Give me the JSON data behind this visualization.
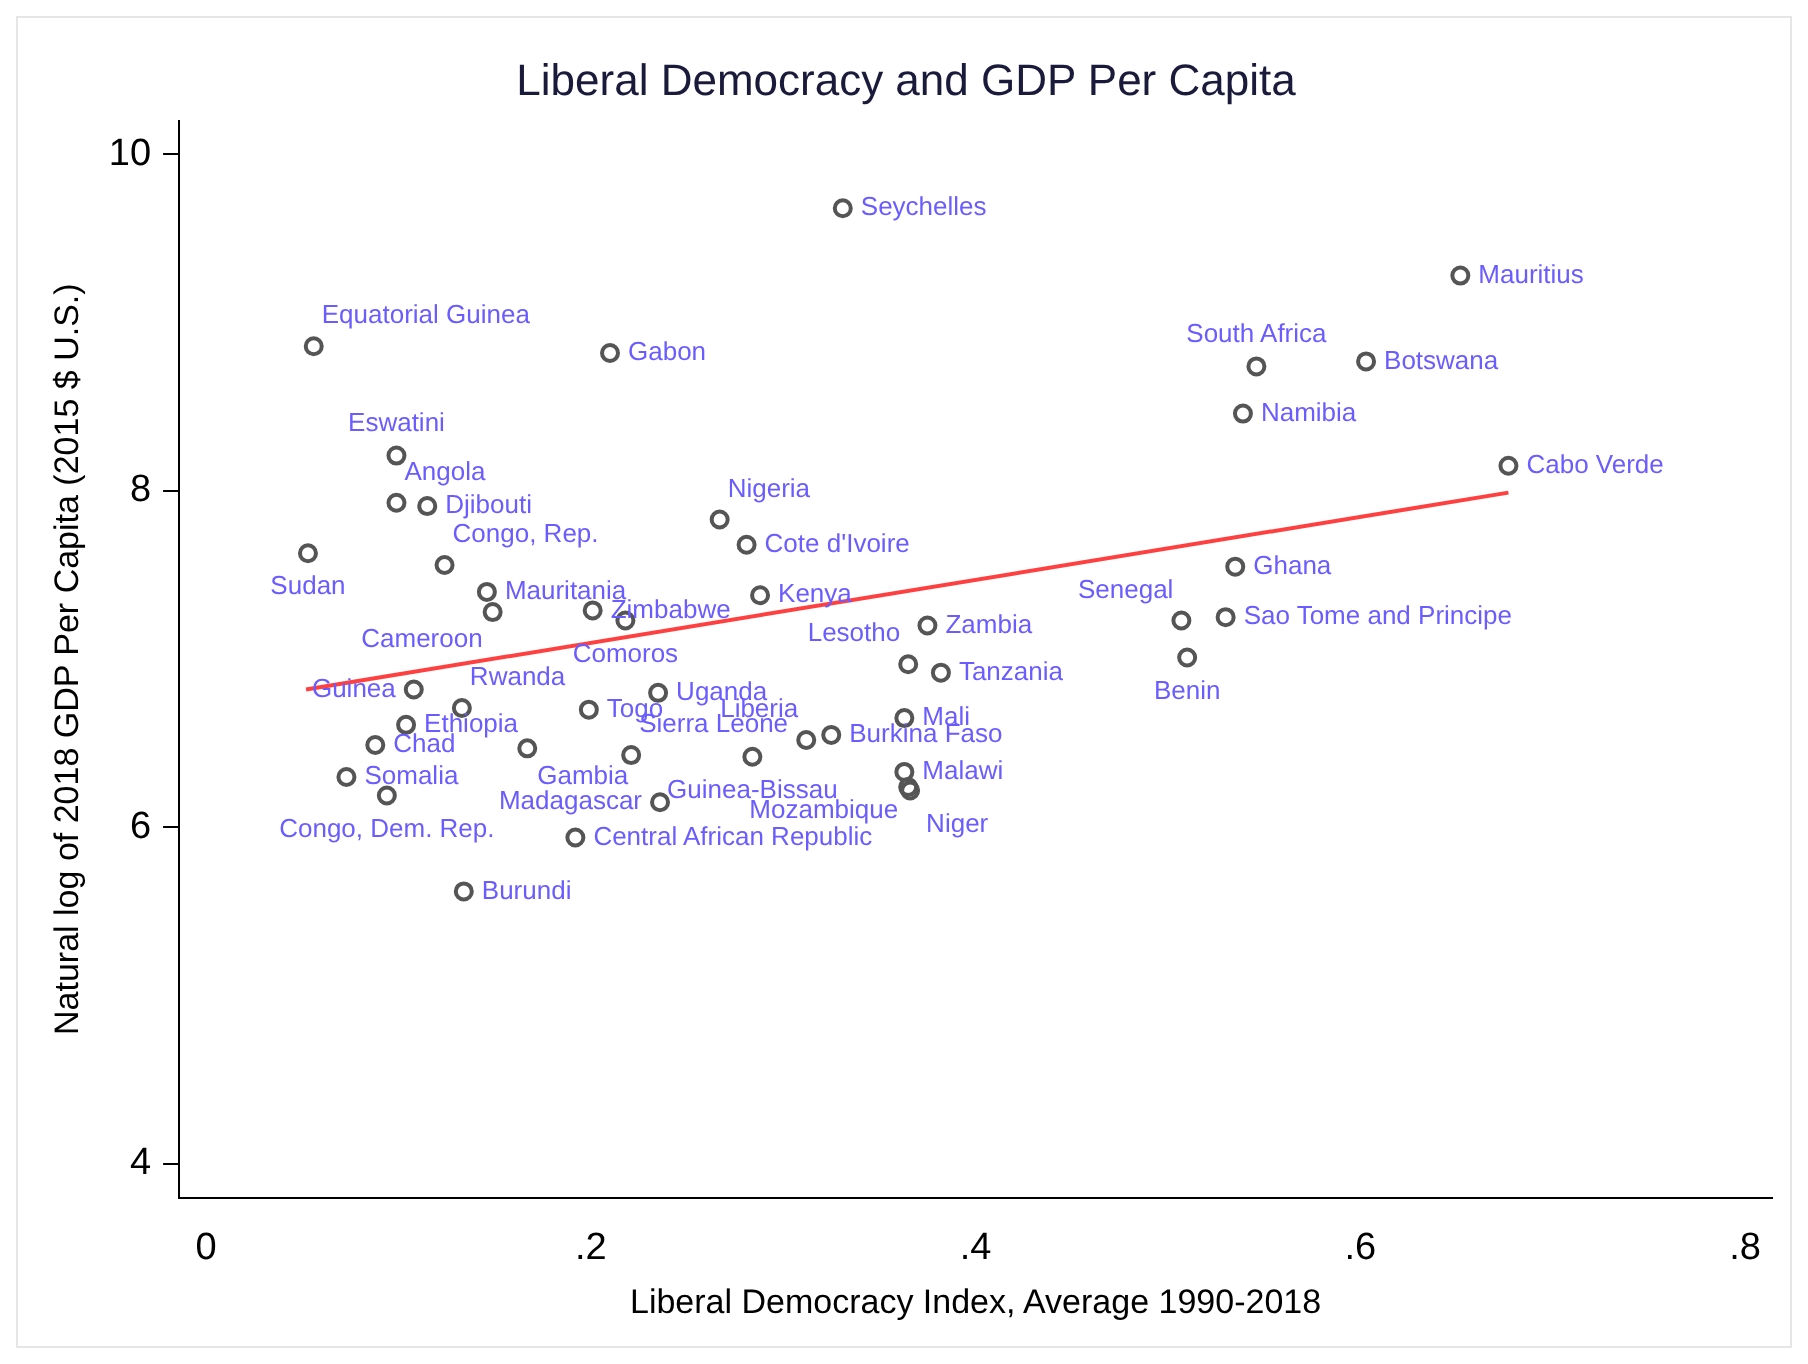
{
  "chart_data": {
    "type": "scatter",
    "title": "Liberal Democracy and GDP Per Capita",
    "xlabel": "Liberal Democracy Index, Average 1990-2018",
    "ylabel": "Natural log of 2018 GDP Per Capita (2015 $ U.S.)",
    "xlim": [
      -0.014,
      0.814
    ],
    "xticks": [
      0,
      {
        "value": 0.2,
        "label": ".2"
      },
      {
        "value": 0.4,
        "label": ".4"
      },
      {
        "value": 0.6,
        "label": ".6"
      },
      {
        "value": 0.8,
        "label": ".8"
      }
    ],
    "ylim": [
      3.8,
      10.2
    ],
    "yticks": [
      4,
      6,
      8,
      10
    ],
    "grid": false,
    "legend": false,
    "series": [
      {
        "type": "scatter",
        "marker": "circle",
        "color": "#555555",
        "x": [
          0.056,
          0.21,
          0.099,
          0.099,
          0.115,
          0.053,
          0.124,
          0.267,
          0.281,
          0.146,
          0.149,
          0.201,
          0.218,
          0.288,
          0.108,
          0.133,
          0.104,
          0.088,
          0.073,
          0.094,
          0.167,
          0.221,
          0.284,
          0.312,
          0.325,
          0.199,
          0.235,
          0.236,
          0.192,
          0.134,
          0.375,
          0.365,
          0.382,
          0.363,
          0.363,
          0.365,
          0.366,
          0.331,
          0.652,
          0.546,
          0.603,
          0.539,
          0.677,
          0.535,
          0.507,
          0.53,
          0.51
        ],
        "values": [
          8.86,
          8.82,
          8.21,
          7.93,
          7.91,
          7.63,
          7.56,
          7.83,
          7.68,
          7.4,
          7.28,
          7.29,
          7.23,
          7.38,
          6.82,
          6.71,
          6.61,
          6.49,
          6.3,
          6.19,
          6.47,
          6.43,
          6.42,
          6.52,
          6.55,
          6.7,
          6.8,
          6.15,
          5.94,
          5.62,
          7.2,
          6.97,
          6.92,
          6.65,
          6.33,
          6.24,
          6.22,
          9.68,
          9.28,
          8.74,
          8.77,
          8.46,
          8.15,
          7.55,
          7.23,
          7.25,
          7.01
        ]
      },
      {
        "type": "line",
        "marker": "none",
        "color": "#ff4040",
        "x": [
          0.052,
          0.677
        ],
        "values": [
          6.82,
          7.99
        ]
      }
    ],
    "annotations": [
      {
        "text": "Equatorial Guinea",
        "x": 0.056,
        "y": 8.86
      },
      {
        "text": "Gabon",
        "x": 0.21,
        "y": 8.82
      },
      {
        "text": "Eswatini",
        "x": 0.099,
        "y": 8.21
      },
      {
        "text": "Angola",
        "x": 0.099,
        "y": 7.93
      },
      {
        "text": "Djibouti",
        "x": 0.115,
        "y": 7.91
      },
      {
        "text": "Sudan",
        "x": 0.053,
        "y": 7.63
      },
      {
        "text": "Congo, Rep.",
        "x": 0.124,
        "y": 7.56
      },
      {
        "text": "Nigeria",
        "x": 0.267,
        "y": 7.83
      },
      {
        "text": "Cote d'Ivoire",
        "x": 0.281,
        "y": 7.68
      },
      {
        "text": "Mauritania",
        "x": 0.146,
        "y": 7.4
      },
      {
        "text": "Cameroon",
        "x": 0.149,
        "y": 7.28
      },
      {
        "text": "Zimbabwe",
        "x": 0.201,
        "y": 7.29
      },
      {
        "text": "Comoros",
        "x": 0.218,
        "y": 7.23
      },
      {
        "text": "Kenya",
        "x": 0.288,
        "y": 7.38
      },
      {
        "text": "Guinea",
        "x": 0.108,
        "y": 6.82
      },
      {
        "text": "Rwanda",
        "x": 0.133,
        "y": 6.71
      },
      {
        "text": "Ethiopia",
        "x": 0.104,
        "y": 6.61
      },
      {
        "text": "Chad",
        "x": 0.088,
        "y": 6.49
      },
      {
        "text": "Somalia",
        "x": 0.073,
        "y": 6.3
      },
      {
        "text": "Congo, Dem. Rep.",
        "x": 0.094,
        "y": 6.19
      },
      {
        "text": "Gambia",
        "x": 0.167,
        "y": 6.47
      },
      {
        "text": "Sierra Leone",
        "x": 0.221,
        "y": 6.43
      },
      {
        "text": "Guinea-Bissau",
        "x": 0.284,
        "y": 6.42
      },
      {
        "text": "Liberia",
        "x": 0.312,
        "y": 6.52
      },
      {
        "text": "Burkina Faso",
        "x": 0.325,
        "y": 6.55
      },
      {
        "text": "Togo",
        "x": 0.199,
        "y": 6.7
      },
      {
        "text": "Uganda",
        "x": 0.235,
        "y": 6.8
      },
      {
        "text": "Madagascar",
        "x": 0.236,
        "y": 6.15
      },
      {
        "text": "Central African Republic",
        "x": 0.192,
        "y": 5.94
      },
      {
        "text": "Burundi",
        "x": 0.134,
        "y": 5.62
      },
      {
        "text": "Zambia",
        "x": 0.375,
        "y": 7.2
      },
      {
        "text": "Lesotho",
        "x": 0.365,
        "y": 6.97
      },
      {
        "text": "Tanzania",
        "x": 0.382,
        "y": 6.92
      },
      {
        "text": "Mali",
        "x": 0.363,
        "y": 6.65
      },
      {
        "text": "Malawi",
        "x": 0.363,
        "y": 6.33
      },
      {
        "text": "Mozambique",
        "x": 0.365,
        "y": 6.24
      },
      {
        "text": "Niger",
        "x": 0.366,
        "y": 6.22
      },
      {
        "text": "Seychelles",
        "x": 0.331,
        "y": 9.68
      },
      {
        "text": "Mauritius",
        "x": 0.652,
        "y": 9.28
      },
      {
        "text": "South Africa",
        "x": 0.546,
        "y": 8.74
      },
      {
        "text": "Botswana",
        "x": 0.603,
        "y": 8.77
      },
      {
        "text": "Namibia",
        "x": 0.539,
        "y": 8.46
      },
      {
        "text": "Cabo Verde",
        "x": 0.677,
        "y": 8.15
      },
      {
        "text": "Ghana",
        "x": 0.535,
        "y": 7.55
      },
      {
        "text": "Senegal",
        "x": 0.507,
        "y": 7.23
      },
      {
        "text": "Sao Tome and Principe",
        "x": 0.53,
        "y": 7.25
      },
      {
        "text": "Benin",
        "x": 0.51,
        "y": 7.01
      }
    ]
  }
}
